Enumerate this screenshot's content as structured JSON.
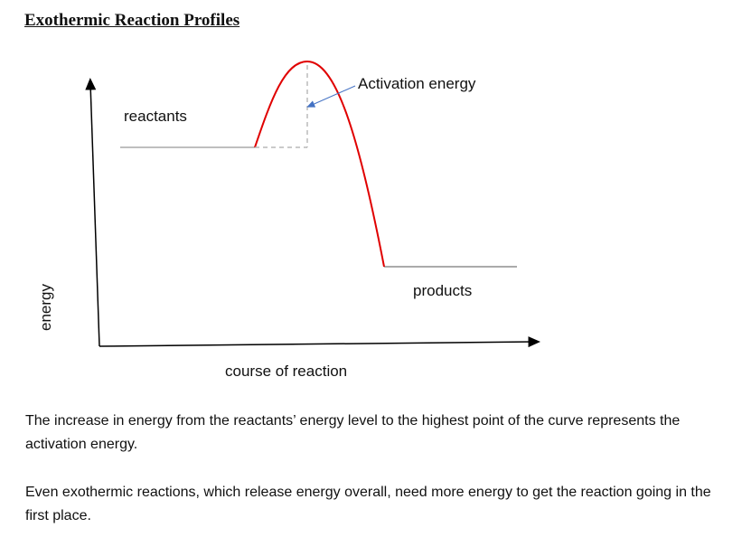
{
  "header": {
    "title": "Exothermic Reaction Profiles"
  },
  "diagram": {
    "y_axis_label": "energy",
    "x_axis_label": "course of reaction",
    "reactants_label": "reactants",
    "products_label": "products",
    "activation_label": "Activation energy"
  },
  "paragraphs": [
    "The increase in energy from the reactants’ energy level to the highest point of the curve represents the activation energy.",
    "Even exothermic reactions, which release energy overall, need more energy to get the reaction going in the first place."
  ]
}
